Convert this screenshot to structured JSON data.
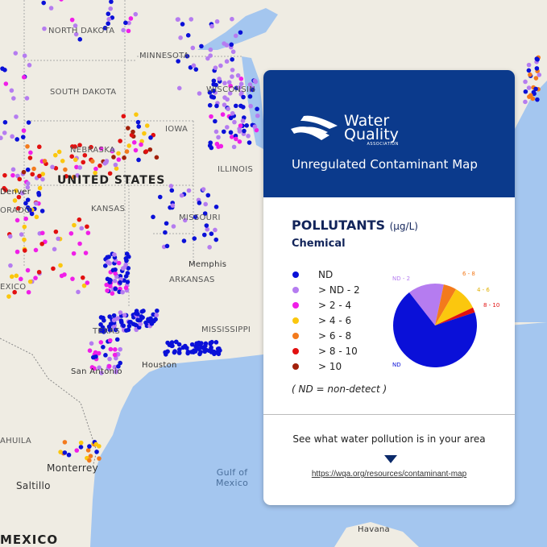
{
  "map": {
    "labels": [
      {
        "id": "north-dakota",
        "text": "NORTH DAKOTA"
      },
      {
        "id": "minnesota",
        "text": "MINNESOTA"
      },
      {
        "id": "south-dakota",
        "text": "SOUTH DAKOTA"
      },
      {
        "id": "wisconsin",
        "text": "WISCONSIN"
      },
      {
        "id": "iowa",
        "text": "IOWA"
      },
      {
        "id": "nebraska",
        "text": "NEBRASKA"
      },
      {
        "id": "united-states",
        "text": "UNITED STATES"
      },
      {
        "id": "illinois",
        "text": "ILLINOIS"
      },
      {
        "id": "kansas",
        "text": "KANSAS"
      },
      {
        "id": "missouri",
        "text": "MISSOURI"
      },
      {
        "id": "denver",
        "text": "Denver"
      },
      {
        "id": "colorado",
        "text": "ORADO"
      },
      {
        "id": "memphis",
        "text": "Memphis"
      },
      {
        "id": "new-mexico",
        "text": "EXICO"
      },
      {
        "id": "arkansas",
        "text": "ARKANSAS"
      },
      {
        "id": "texas",
        "text": "TEXAS"
      },
      {
        "id": "mississippi",
        "text": "MISSISSIPPI"
      },
      {
        "id": "san-antonio",
        "text": "San Antonio"
      },
      {
        "id": "houston",
        "text": "Houston"
      },
      {
        "id": "coahuila",
        "text": "AHUILA"
      },
      {
        "id": "monterrey",
        "text": "Monterrey"
      },
      {
        "id": "saltillo",
        "text": "Saltillo"
      },
      {
        "id": "gulf",
        "text": "Gulf of\nMexico"
      },
      {
        "id": "mexico",
        "text": "MEXICO"
      },
      {
        "id": "havana",
        "text": "Havana"
      }
    ],
    "colors": {
      "land": "#efece3",
      "water": "#a4c6ef"
    }
  },
  "card": {
    "logo": {
      "line1": "Water",
      "line2": "Quality",
      "line3": "ASSOCIATION"
    },
    "title": "Unregulated Contaminant Map",
    "pollutants_label": "POLLUTANTS",
    "unit": "(µg/L)",
    "category": "Chemical",
    "legend": [
      {
        "label": "ND",
        "color": "#0a10d8"
      },
      {
        "label": "> ND - 2",
        "color": "#b57cf0"
      },
      {
        "label": "> 2 - 4",
        "color": "#f01ee8"
      },
      {
        "label": "> 4 - 6",
        "color": "#fbc70e"
      },
      {
        "label": "> 6 - 8",
        "color": "#f37a1c"
      },
      {
        "label": "> 8 - 10",
        "color": "#e21010"
      },
      {
        "label": "> 10",
        "color": "#a2200a"
      }
    ],
    "note": "( ND = non-detect )",
    "cta": "See what water pollution is in your area",
    "url": "https://wqa.org/resources/contaminant-map"
  },
  "chart_data": {
    "type": "pie",
    "slices": [
      {
        "label": "ND",
        "value": 69.5,
        "color": "#0a10d8"
      },
      {
        "label": "ND - 2",
        "value": 13.9,
        "color": "#b57cf0"
      },
      {
        "label": "6 - 8",
        "value": 5.0,
        "color": "#f37a1c"
      },
      {
        "label": "4 - 6",
        "value": 9.6,
        "color": "#fbc70e"
      },
      {
        "label": "8 - 10",
        "value": 2.0,
        "color": "#e21010"
      }
    ]
  }
}
